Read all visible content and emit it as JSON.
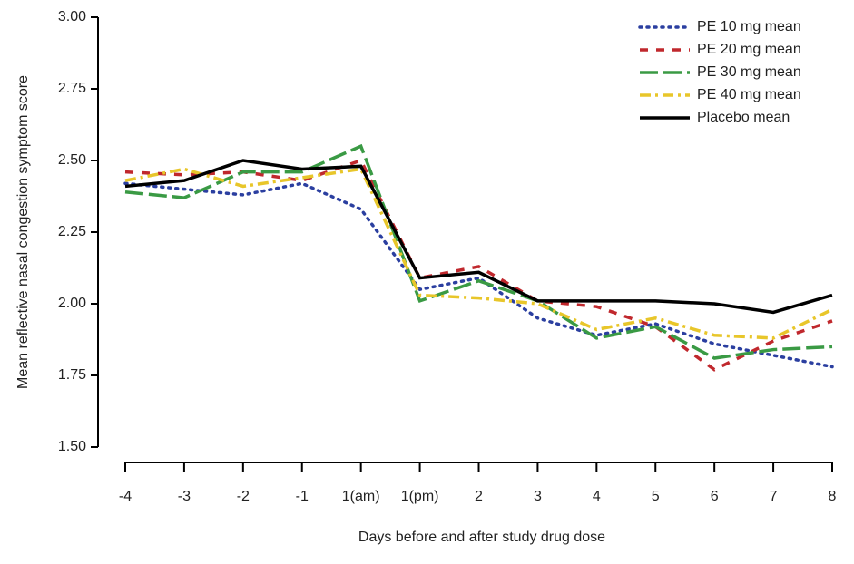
{
  "chart_data": {
    "type": "line",
    "x_label": "Days before and after study drug dose",
    "y_label": "Mean reflective nasal congestion symptom score",
    "categories": [
      "-4",
      "-3",
      "-2",
      "-1",
      "1(am)",
      "1(pm)",
      "2",
      "3",
      "4",
      "5",
      "6",
      "7",
      "8"
    ],
    "series": [
      {
        "name": "PE 10 mg mean",
        "color": "#2b3fa0",
        "values": [
          2.42,
          2.4,
          2.38,
          2.42,
          2.33,
          2.05,
          2.09,
          1.95,
          1.89,
          1.93,
          1.86,
          1.82,
          1.78
        ]
      },
      {
        "name": "PE 20 mg mean",
        "color": "#c0282d",
        "values": [
          2.46,
          2.45,
          2.46,
          2.43,
          2.5,
          2.09,
          2.13,
          2.01,
          1.99,
          1.92,
          1.77,
          1.87,
          1.94
        ]
      },
      {
        "name": "PE 30 mg mean",
        "color": "#3a9a44",
        "values": [
          2.39,
          2.37,
          2.46,
          2.46,
          2.55,
          2.01,
          2.08,
          2.01,
          1.88,
          1.92,
          1.81,
          1.84,
          1.85
        ]
      },
      {
        "name": "PE 40 mg mean",
        "color": "#e8c62a",
        "values": [
          2.43,
          2.47,
          2.41,
          2.44,
          2.47,
          2.03,
          2.02,
          2.0,
          1.91,
          1.95,
          1.89,
          1.88,
          1.98
        ]
      },
      {
        "name": "Placebo mean",
        "color": "#000000",
        "values": [
          2.41,
          2.43,
          2.5,
          2.47,
          2.48,
          2.09,
          2.11,
          2.01,
          2.01,
          2.01,
          2.0,
          1.97,
          2.03
        ]
      }
    ],
    "ylim": [
      1.5,
      3.0
    ],
    "yticks": [
      {
        "value": 1.5,
        "label": "1.50"
      },
      1.75,
      {
        "value": 2.0,
        "label": "2.00"
      },
      2.25,
      {
        "value": 2.5,
        "label": "2.50"
      },
      2.75,
      {
        "value": 3.0,
        "label": "3.00"
      }
    ],
    "grid": false,
    "legend": "top-right"
  }
}
